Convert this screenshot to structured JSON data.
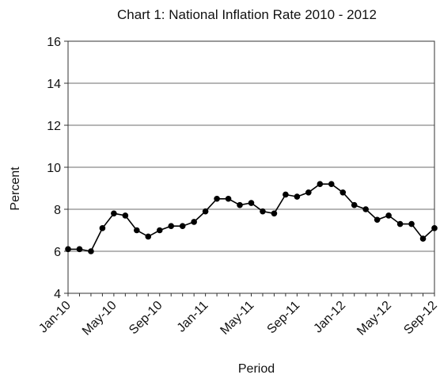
{
  "chart_data": {
    "type": "line",
    "title": "Chart 1: National Inflation Rate 2010 - 2012",
    "xlabel": "Period",
    "ylabel": "Percent",
    "ylim": [
      4,
      16
    ],
    "yticks": [
      4,
      6,
      8,
      10,
      12,
      14,
      16
    ],
    "grid": true,
    "legend": "none",
    "x": [
      "Jan-10",
      "Feb-10",
      "Mar-10",
      "Apr-10",
      "May-10",
      "Jun-10",
      "Jul-10",
      "Aug-10",
      "Sep-10",
      "Oct-10",
      "Nov-10",
      "Dec-10",
      "Jan-11",
      "Feb-11",
      "Mar-11",
      "Apr-11",
      "May-11",
      "Jun-11",
      "Jul-11",
      "Aug-11",
      "Sep-11",
      "Oct-11",
      "Nov-11",
      "Dec-11",
      "Jan-12",
      "Feb-12",
      "Mar-12",
      "Apr-12",
      "May-12",
      "Jun-12",
      "Jul-12",
      "Aug-12",
      "Sep-12"
    ],
    "xtick_labels": [
      "Jan-10",
      "May-10",
      "Sep-10",
      "Jan-11",
      "May-11",
      "Sep-11",
      "Jan-12",
      "May-12",
      "Sep-12"
    ],
    "series": [
      {
        "values": [
          6.1,
          6.1,
          6.0,
          7.1,
          7.8,
          7.7,
          7.0,
          6.7,
          7.0,
          7.2,
          7.2,
          7.4,
          7.9,
          8.5,
          8.5,
          8.2,
          8.3,
          7.9,
          7.8,
          8.7,
          8.6,
          8.8,
          9.2,
          9.2,
          8.8,
          8.2,
          8.0,
          7.5,
          7.7,
          7.3,
          7.3,
          6.6,
          7.1
        ],
        "color": "#000000"
      }
    ]
  }
}
